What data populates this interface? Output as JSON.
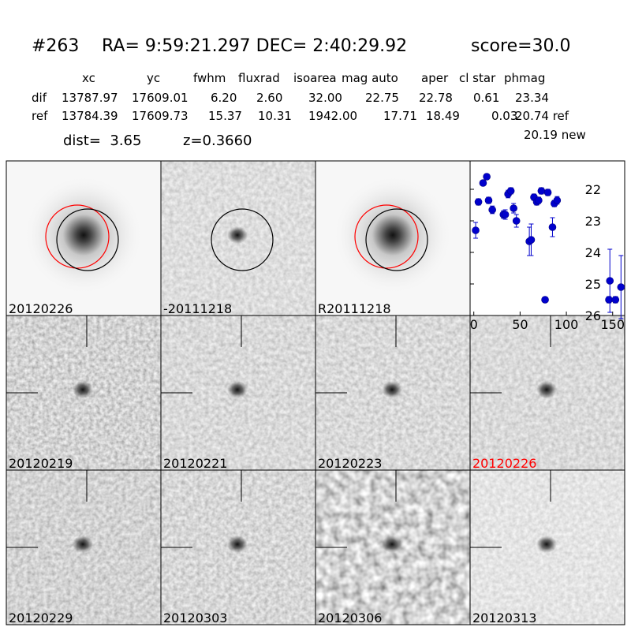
{
  "header": {
    "id": "#263",
    "coords": "RA= 9:59:21.297 DEC= 2:40:29.92",
    "score": "score=30.0"
  },
  "table": {
    "columns": [
      "xc",
      "yc",
      "fwhm",
      "fluxrad",
      "isoarea",
      "mag auto",
      "aper",
      "cl star",
      "phmag"
    ],
    "rows": [
      [
        "dif",
        "13787.97",
        "17609.01",
        "6.20",
        "2.60",
        "32.00",
        "22.75",
        "22.78",
        "0.61",
        "23.34"
      ],
      [
        "ref",
        "13784.39",
        "17609.73",
        "15.37",
        "10.31",
        "1942.00",
        "17.71",
        "18.49",
        "0.03",
        "20.74 ref"
      ]
    ]
  },
  "dist": "dist=  3.65",
  "z": "z=0.3660",
  "new_mag": "20.19 new",
  "panels": [
    {
      "label": "20120226",
      "color": "#000000"
    },
    {
      "label": "-20111218",
      "color": "#000000"
    },
    {
      "label": "R20111218",
      "color": "#000000"
    },
    {
      "label": "20120219",
      "color": "#000000"
    },
    {
      "label": "20120221",
      "color": "#000000"
    },
    {
      "label": "20120223",
      "color": "#000000"
    },
    {
      "label": "20120226",
      "color": "#ff0000"
    },
    {
      "label": "20120229",
      "color": "#000000"
    },
    {
      "label": "20120303",
      "color": "#000000"
    },
    {
      "label": "20120306",
      "color": "#000000"
    },
    {
      "label": "20120313",
      "color": "#000000"
    }
  ],
  "chart_data": {
    "type": "scatter",
    "color": "#0000cc",
    "y_inverted": true,
    "x": [
      2,
      5,
      10,
      14,
      16,
      20,
      32,
      34,
      37,
      40,
      43,
      46,
      60,
      62,
      65,
      68,
      70,
      73,
      77,
      80,
      85,
      87,
      90,
      146,
      147,
      153,
      159
    ],
    "y": [
      23.3,
      22.4,
      21.8,
      21.6,
      22.35,
      22.65,
      22.8,
      22.8,
      22.15,
      22.05,
      22.6,
      23.0,
      23.65,
      23.6,
      22.25,
      22.4,
      22.35,
      22.05,
      25.5,
      22.1,
      23.2,
      22.45,
      22.35,
      25.5,
      24.9,
      25.5,
      25.1
    ],
    "err": [
      0.25,
      0.1,
      0.08,
      0.08,
      0.1,
      0.12,
      0.12,
      0.15,
      0.12,
      0.1,
      0.15,
      0.2,
      0.45,
      0.5,
      0.1,
      0.1,
      0.1,
      0.1,
      0.08,
      0.1,
      0.3,
      0.1,
      0.12,
      0.1,
      1.0,
      0.1,
      1.0
    ],
    "xlim": [
      -4,
      163
    ],
    "ylim": [
      21.1,
      26
    ],
    "xticks": [
      0,
      50,
      100,
      150
    ],
    "yticks": [
      22,
      23,
      24,
      25,
      26
    ]
  }
}
